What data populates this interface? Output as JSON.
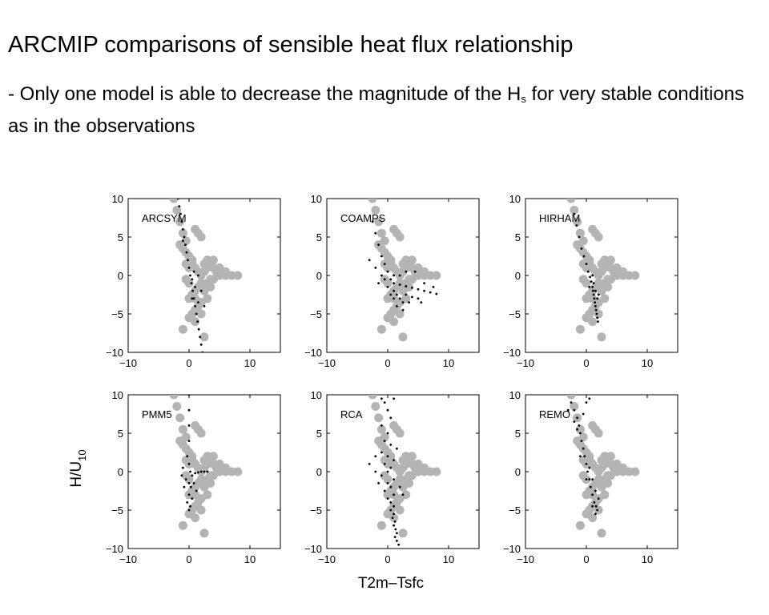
{
  "slide": {
    "title": "ARCMIP comparisons of sensible heat flux relationship",
    "bullet_prefix": "- Only one model is able to decrease the magnitude of the H",
    "bullet_sub": "s",
    "bullet_suffix": " for very stable conditions as in the observations"
  },
  "colors": {
    "observations": "#b4b4b4",
    "model": "#000000",
    "axes": "#000000",
    "background": "#ffffff"
  },
  "chart_data": {
    "type": "scatter",
    "layout": "2x3 small multiples",
    "xlabel": "T2m–Tsfc",
    "ylabel_main": "H/U",
    "ylabel_sub": "10",
    "xlim": [
      -10,
      15
    ],
    "ylim": [
      -10,
      10
    ],
    "xticks": [
      -10,
      0,
      10
    ],
    "yticks": [
      -10,
      -5,
      0,
      5,
      10
    ],
    "xtick_labels": [
      "−10",
      "0",
      "10"
    ],
    "ytick_labels": [
      "−10",
      "−5",
      "0",
      "5",
      "10"
    ],
    "grid": false,
    "observations": {
      "marker": "large gray circles",
      "points": [
        [
          -2.5,
          10
        ],
        [
          -2,
          8.5
        ],
        [
          -1.5,
          7
        ],
        [
          -1,
          5.5
        ],
        [
          -0.5,
          4.5
        ],
        [
          1,
          6
        ],
        [
          1.5,
          5.5
        ],
        [
          2,
          5
        ],
        [
          -1.5,
          4
        ],
        [
          -1,
          3.5
        ],
        [
          -0.5,
          3
        ],
        [
          0,
          2.5
        ],
        [
          0.5,
          2
        ],
        [
          -0.5,
          1.5
        ],
        [
          0,
          1
        ],
        [
          0.5,
          1.5
        ],
        [
          1,
          1
        ],
        [
          1.5,
          0.5
        ],
        [
          2,
          0
        ],
        [
          2.5,
          0.5
        ],
        [
          3,
          1
        ],
        [
          3.5,
          1.5
        ],
        [
          4,
          1
        ],
        [
          4.5,
          0.5
        ],
        [
          5,
          0
        ],
        [
          6,
          0
        ],
        [
          7,
          0
        ],
        [
          8,
          0
        ],
        [
          5,
          1
        ],
        [
          6,
          0.5
        ],
        [
          4,
          -0.5
        ],
        [
          3,
          -1
        ],
        [
          3.5,
          -1.5
        ],
        [
          2.5,
          -2
        ],
        [
          3,
          -3
        ],
        [
          2,
          -3.5
        ],
        [
          1.5,
          -4
        ],
        [
          1,
          -4.5
        ],
        [
          0.5,
          -5
        ],
        [
          0,
          -5.5
        ],
        [
          1,
          -6
        ],
        [
          2,
          -5
        ],
        [
          1,
          -2
        ],
        [
          0,
          -1
        ],
        [
          -0.5,
          -0.5
        ],
        [
          1.5,
          -1.5
        ],
        [
          2,
          -1
        ],
        [
          0.5,
          -2.5
        ],
        [
          1,
          -3
        ],
        [
          0,
          -3
        ],
        [
          3.5,
          -0.5
        ],
        [
          2.5,
          1.5
        ],
        [
          4,
          2
        ],
        [
          3,
          2
        ],
        [
          -1,
          -7
        ],
        [
          2.5,
          -8
        ]
      ]
    },
    "panels": [
      {
        "name": "ARCSYM",
        "model_points": [
          [
            -1.8,
            10
          ],
          [
            -1.6,
            9
          ],
          [
            -1.4,
            8
          ],
          [
            -1.2,
            7
          ],
          [
            -1,
            6
          ],
          [
            -0.8,
            5
          ],
          [
            -0.6,
            4
          ],
          [
            -0.4,
            3
          ],
          [
            -0.2,
            2
          ],
          [
            0,
            1
          ],
          [
            0.2,
            0
          ],
          [
            0.4,
            -1
          ],
          [
            0.6,
            -2
          ],
          [
            0.8,
            -3
          ],
          [
            1,
            -4
          ],
          [
            1.2,
            -5
          ],
          [
            1.4,
            -6
          ],
          [
            1.6,
            -7
          ],
          [
            1.8,
            -8
          ],
          [
            2,
            -9
          ],
          [
            2.2,
            -10
          ],
          [
            -1,
            4.5
          ],
          [
            0.5,
            -0.5
          ],
          [
            1,
            -1.5
          ],
          [
            0.8,
            0.5
          ],
          [
            1.5,
            -3.5
          ],
          [
            2,
            -2
          ],
          [
            0.5,
            -3
          ],
          [
            1.5,
            0
          ],
          [
            2.5,
            -4
          ]
        ]
      },
      {
        "name": "COAMPS",
        "model_points": [
          [
            -2.5,
            7
          ],
          [
            -2,
            5.5
          ],
          [
            -1.5,
            4
          ],
          [
            -1,
            2.5
          ],
          [
            -0.5,
            1.5
          ],
          [
            0,
            0.5
          ],
          [
            0.5,
            -0.5
          ],
          [
            1,
            -1
          ],
          [
            2,
            -1.2
          ],
          [
            3,
            -1.4
          ],
          [
            4,
            -1.6
          ],
          [
            5,
            -1.8
          ],
          [
            6,
            -2
          ],
          [
            7,
            -2.2
          ],
          [
            8,
            -2.4
          ],
          [
            1,
            -2
          ],
          [
            1.5,
            -2.5
          ],
          [
            2,
            -3
          ],
          [
            2.5,
            -3.5
          ],
          [
            1,
            -3
          ],
          [
            3,
            -2.5
          ],
          [
            4,
            -2.8
          ],
          [
            5,
            -3
          ],
          [
            0,
            -1.5
          ],
          [
            -1,
            0
          ],
          [
            -2,
            1
          ],
          [
            -3,
            2
          ],
          [
            -1.5,
            -1
          ],
          [
            2,
            0
          ],
          [
            3,
            0.5
          ],
          [
            4.5,
            0.5
          ],
          [
            6,
            -1
          ],
          [
            1.5,
            -4
          ],
          [
            2.5,
            -4.5
          ],
          [
            3.5,
            -3.5
          ],
          [
            0.5,
            -2.5
          ],
          [
            -0.5,
            -0.5
          ],
          [
            1,
            0
          ],
          [
            7.5,
            -1.5
          ],
          [
            5.5,
            -3.5
          ]
        ]
      },
      {
        "name": "HIRHAM",
        "model_points": [
          [
            -2,
            8
          ],
          [
            -1.6,
            6.5
          ],
          [
            -1.2,
            5
          ],
          [
            -0.8,
            3.5
          ],
          [
            -0.4,
            2.5
          ],
          [
            0,
            1.5
          ],
          [
            0.3,
            0.5
          ],
          [
            0.6,
            -0.2
          ],
          [
            0.8,
            -0.8
          ],
          [
            1,
            -1.5
          ],
          [
            1.1,
            -2
          ],
          [
            1.2,
            -2.5
          ],
          [
            1.3,
            -3
          ],
          [
            1.4,
            -3.5
          ],
          [
            1.5,
            -4
          ],
          [
            1.6,
            -4.5
          ],
          [
            1.7,
            -5
          ],
          [
            1.8,
            -5.5
          ],
          [
            1.9,
            -6
          ],
          [
            1.2,
            -1
          ],
          [
            1.5,
            -2
          ],
          [
            1.8,
            -3
          ],
          [
            0.5,
            -1.5
          ],
          [
            2,
            -2.5
          ],
          [
            1,
            0
          ]
        ]
      },
      {
        "name": "PMM5",
        "model_points": [
          [
            0,
            10
          ],
          [
            0,
            8
          ],
          [
            0,
            6
          ],
          [
            0,
            4
          ],
          [
            -0.3,
            2
          ],
          [
            0,
            1
          ],
          [
            0.2,
            0
          ],
          [
            0.5,
            -0.5
          ],
          [
            1,
            -0.2
          ],
          [
            1.5,
            -0.1
          ],
          [
            2,
            0
          ],
          [
            2.5,
            0
          ],
          [
            3,
            0
          ],
          [
            -0.5,
            -1
          ],
          [
            0,
            -1.5
          ],
          [
            0.3,
            -2
          ],
          [
            0,
            -3
          ],
          [
            0.5,
            -3.5
          ],
          [
            -0.3,
            -4
          ],
          [
            0.2,
            -4.5
          ],
          [
            0,
            -5
          ],
          [
            -1,
            0.5
          ],
          [
            -1.2,
            -0.5
          ],
          [
            0.8,
            -1.5
          ],
          [
            1.2,
            -2.5
          ],
          [
            -0.8,
            -2
          ]
        ]
      },
      {
        "name": "RCA",
        "model_points": [
          [
            -0.5,
            9
          ],
          [
            0,
            8
          ],
          [
            0.5,
            7
          ],
          [
            -1,
            6
          ],
          [
            0,
            5
          ],
          [
            -0.5,
            4
          ],
          [
            0.5,
            3.5
          ],
          [
            -1,
            2.5
          ],
          [
            0,
            2
          ],
          [
            1,
            1.5
          ],
          [
            -0.5,
            1
          ],
          [
            0.5,
            0.5
          ],
          [
            0,
            0
          ],
          [
            -1,
            -0.5
          ],
          [
            1,
            -1
          ],
          [
            0,
            -1.5
          ],
          [
            0.5,
            -2
          ],
          [
            -0.5,
            -2.5
          ],
          [
            1,
            -3
          ],
          [
            0,
            -3.5
          ],
          [
            0.5,
            -4
          ],
          [
            1,
            -4.5
          ],
          [
            0.5,
            -5
          ],
          [
            1,
            -5.5
          ],
          [
            0.8,
            -6
          ],
          [
            1.2,
            -6.5
          ],
          [
            1,
            -7
          ],
          [
            1.3,
            -7.5
          ],
          [
            1.5,
            -8
          ],
          [
            1.2,
            -8.5
          ],
          [
            1.5,
            -9
          ],
          [
            1.8,
            -9.5
          ],
          [
            -2,
            0
          ],
          [
            -3,
            1
          ],
          [
            2,
            -2
          ],
          [
            -1.5,
            -1.5
          ],
          [
            2.5,
            -3
          ],
          [
            -2,
            2
          ],
          [
            1.5,
            3
          ],
          [
            -1,
            9.5
          ],
          [
            1,
            9.5
          ]
        ]
      },
      {
        "name": "REMO",
        "model_points": [
          [
            -2.5,
            9
          ],
          [
            -2,
            8
          ],
          [
            -1.5,
            7
          ],
          [
            -1.2,
            6
          ],
          [
            -1,
            5
          ],
          [
            -0.8,
            4
          ],
          [
            -0.5,
            3
          ],
          [
            -0.3,
            2
          ],
          [
            0,
            1
          ],
          [
            0.2,
            0
          ],
          [
            0.5,
            -1
          ],
          [
            0.7,
            -2
          ],
          [
            1,
            -3
          ],
          [
            1.3,
            -4
          ],
          [
            1.6,
            -4.5
          ],
          [
            1.8,
            -5
          ],
          [
            -1.5,
            5.5
          ],
          [
            -2,
            6.5
          ],
          [
            0.5,
            0.5
          ],
          [
            1,
            -1
          ],
          [
            1.5,
            -2.5
          ],
          [
            -1,
            2
          ],
          [
            0,
            -1
          ],
          [
            1,
            -4.5
          ],
          [
            2,
            -3.5
          ],
          [
            -0.5,
            7.5
          ],
          [
            0,
            9
          ],
          [
            0.5,
            9.5
          ],
          [
            -3,
            8
          ],
          [
            1.5,
            -5.5
          ]
        ]
      }
    ]
  }
}
